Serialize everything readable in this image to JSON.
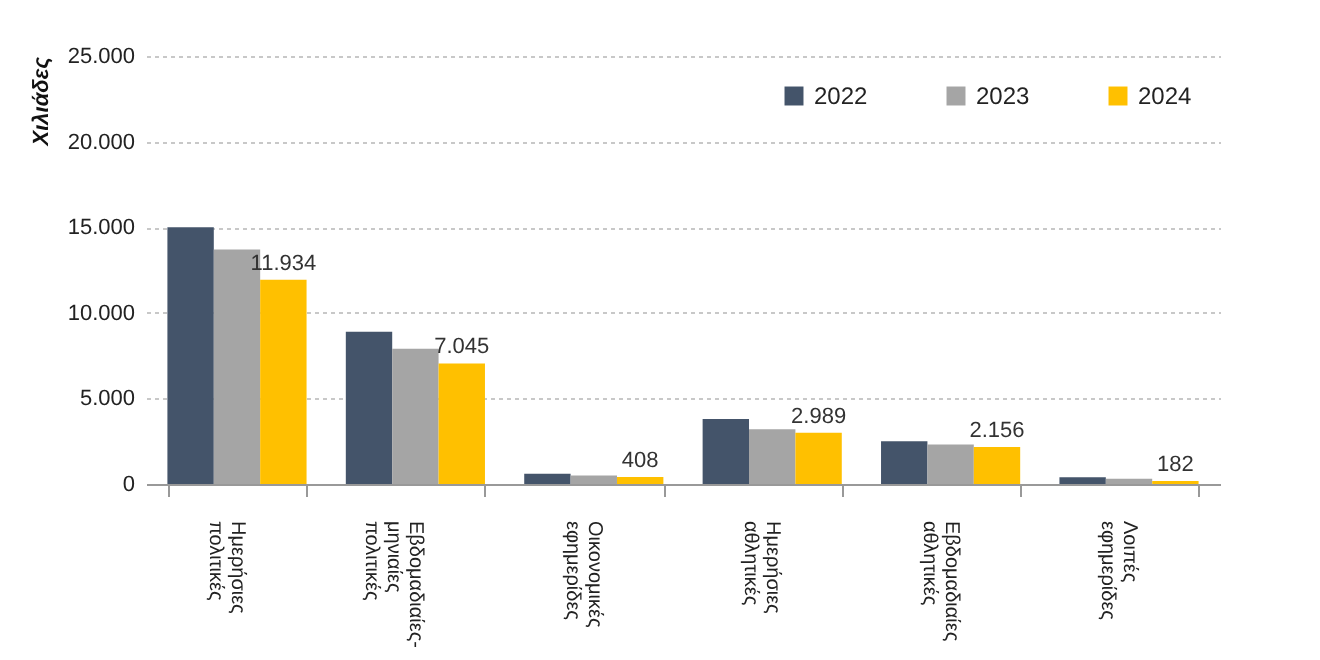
{
  "chart_data": {
    "type": "bar",
    "ylabel": "Χιλιάδες",
    "categories": [
      "Ημερήσιες πολιτικές",
      "Εβδομαδιαίες-μηνιαίες πολιτικές",
      "Οικονομικές εφημερίδες",
      "Ημερήσιες αθλητικές",
      "Εβδομαδιαίες αθλητικές",
      "Λοιπές εφημερίδες"
    ],
    "series": [
      {
        "name": "2022",
        "color": "#44546a",
        "values": [
          15000,
          8900,
          600,
          3800,
          2500,
          400
        ]
      },
      {
        "name": "2023",
        "color": "#a5a5a5",
        "values": [
          13700,
          7900,
          500,
          3200,
          2300,
          300
        ]
      },
      {
        "name": "2024",
        "color": "#ffc000",
        "values": [
          11934,
          7045,
          408,
          2989,
          2156,
          182
        ],
        "value_labels": [
          "11.934",
          "7.045",
          "408",
          "2.989",
          "2.156",
          "182"
        ]
      }
    ],
    "ylim": [
      0,
      25000
    ],
    "yticks": [
      {
        "value": 0,
        "label": "0"
      },
      {
        "value": 5000,
        "label": "5.000"
      },
      {
        "value": 10000,
        "label": "10.000"
      },
      {
        "value": 15000,
        "label": "15.000"
      },
      {
        "value": 20000,
        "label": "20.000"
      },
      {
        "value": 25000,
        "label": "25.000"
      }
    ],
    "grid": "y",
    "legend": "top right"
  }
}
